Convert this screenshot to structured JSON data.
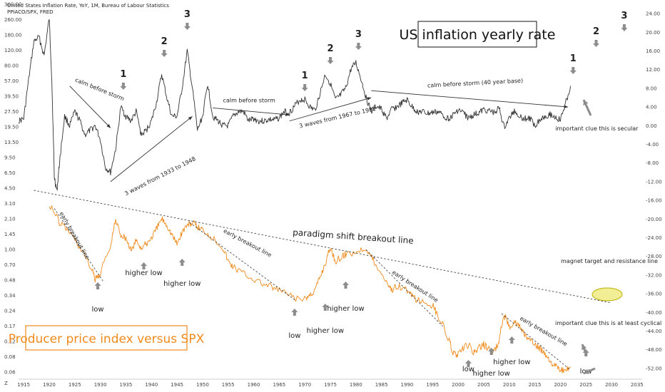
{
  "header": {
    "title": "United States Inflation Rate, YoY, 1M, Bureau of Labour Statistics",
    "subtitle": "PPIACO/SPX, FRED"
  },
  "chart_data": {
    "type": "line",
    "title": "US inflation yearly rate",
    "title2": "Producer price index versus SPX",
    "x_ticks": [
      "1915",
      "1920",
      "1925",
      "1930",
      "1935",
      "1940",
      "1945",
      "1950",
      "1955",
      "1960",
      "1965",
      "1970",
      "1975",
      "1980",
      "1985",
      "1990",
      "1995",
      "2000",
      "2005",
      "2010",
      "2015",
      "2020",
      "2025",
      "2030",
      "2035"
    ],
    "xlim": [
      1914,
      2036
    ],
    "left_ticks": [
      "360.00",
      "260.00",
      "180.00",
      "120.00",
      "80.00",
      "57.00",
      "39.50",
      "27.50",
      "19.50",
      "13.50",
      "9.50",
      "6.50",
      "4.50",
      "3.10",
      "2.10",
      "1.45",
      "1.00",
      "0.70",
      "0.48",
      "0.34",
      "0.24",
      "0.17",
      "0.12",
      "0.08",
      "0.06"
    ],
    "right_ticks": [
      "24.00",
      "20.00",
      "16.00",
      "12.00",
      "8.00",
      "4.00",
      "0.00",
      "-4.00",
      "-8.00",
      "-12.00",
      "-16.00",
      "-20.00",
      "-24.00",
      "-28.00",
      "-32.00",
      "-36.00",
      "-40.00",
      "-44.00",
      "-48.00",
      "-52.00"
    ],
    "right_ylim": [
      -54,
      26
    ],
    "left_log_ylim": [
      0.05,
      360
    ],
    "corner_label": "Z",
    "series": [
      {
        "axis": "right",
        "color": "#333333",
        "points": [
          [
            1914,
            1.0
          ],
          [
            1915,
            1.5
          ],
          [
            1916,
            10
          ],
          [
            1917,
            18
          ],
          [
            1918,
            19
          ],
          [
            1919,
            15
          ],
          [
            1920,
            23
          ],
          [
            1920.5,
            10
          ],
          [
            1921,
            -11
          ],
          [
            1921.5,
            -14
          ],
          [
            1922,
            -8
          ],
          [
            1923,
            2
          ],
          [
            1924,
            0
          ],
          [
            1925,
            3
          ],
          [
            1926,
            1
          ],
          [
            1927,
            -2
          ],
          [
            1928,
            -1
          ],
          [
            1929,
            0
          ],
          [
            1930,
            -3
          ],
          [
            1931,
            -9
          ],
          [
            1932,
            -10
          ],
          [
            1933,
            -5
          ],
          [
            1934,
            4
          ],
          [
            1935,
            2
          ],
          [
            1936,
            1
          ],
          [
            1937,
            3
          ],
          [
            1938,
            -2
          ],
          [
            1939,
            -1
          ],
          [
            1940,
            1
          ],
          [
            1941,
            5
          ],
          [
            1942,
            11
          ],
          [
            1943,
            6
          ],
          [
            1944,
            2
          ],
          [
            1945,
            2
          ],
          [
            1946,
            8
          ],
          [
            1947,
            16
          ],
          [
            1948,
            8
          ],
          [
            1949,
            -1
          ],
          [
            1950,
            2
          ],
          [
            1951,
            9
          ],
          [
            1952,
            2
          ],
          [
            1953,
            1
          ],
          [
            1954,
            0
          ],
          [
            1955,
            0
          ],
          [
            1956,
            2
          ],
          [
            1957,
            3
          ],
          [
            1958,
            3
          ],
          [
            1959,
            1
          ],
          [
            1960,
            1.5
          ],
          [
            1961,
            1
          ],
          [
            1962,
            1
          ],
          [
            1963,
            1.3
          ],
          [
            1964,
            1.2
          ],
          [
            1965,
            1.7
          ],
          [
            1966,
            3
          ],
          [
            1967,
            2.8
          ],
          [
            1968,
            4.2
          ],
          [
            1969,
            5.5
          ],
          [
            1970,
            5.6
          ],
          [
            1971,
            4
          ],
          [
            1972,
            3.3
          ],
          [
            1973,
            7
          ],
          [
            1974,
            11
          ],
          [
            1975,
            9
          ],
          [
            1976,
            5.5
          ],
          [
            1977,
            6.5
          ],
          [
            1978,
            8
          ],
          [
            1979,
            12
          ],
          [
            1980,
            13.5
          ],
          [
            1981,
            10
          ],
          [
            1982,
            6
          ],
          [
            1983,
            3
          ],
          [
            1984,
            4.2
          ],
          [
            1985,
            3.5
          ],
          [
            1986,
            1.5
          ],
          [
            1987,
            3.5
          ],
          [
            1988,
            4
          ],
          [
            1989,
            4.8
          ],
          [
            1990,
            5.5
          ],
          [
            1991,
            4
          ],
          [
            1992,
            3
          ],
          [
            1993,
            3
          ],
          [
            1994,
            2.6
          ],
          [
            1995,
            2.8
          ],
          [
            1996,
            3
          ],
          [
            1997,
            2.3
          ],
          [
            1998,
            1.5
          ],
          [
            1999,
            2.2
          ],
          [
            2000,
            3.4
          ],
          [
            2001,
            2.8
          ],
          [
            2002,
            1.6
          ],
          [
            2003,
            2.3
          ],
          [
            2004,
            2.7
          ],
          [
            2005,
            3.4
          ],
          [
            2006,
            3.2
          ],
          [
            2007,
            2.8
          ],
          [
            2008,
            3.8
          ],
          [
            2009,
            -0.4
          ],
          [
            2010,
            1.6
          ],
          [
            2011,
            3.2
          ],
          [
            2012,
            2.1
          ],
          [
            2013,
            1.5
          ],
          [
            2014,
            1.6
          ],
          [
            2015,
            0.1
          ],
          [
            2016,
            1.3
          ],
          [
            2017,
            2.1
          ],
          [
            2018,
            2.4
          ],
          [
            2019,
            1.8
          ],
          [
            2020,
            1.2
          ],
          [
            2021,
            4.7
          ],
          [
            2022,
            8.5
          ]
        ]
      },
      {
        "axis": "left",
        "color": "#f08a1c",
        "points": [
          [
            1920,
            3.1
          ],
          [
            1922,
            2.0
          ],
          [
            1924,
            1.6
          ],
          [
            1926,
            1.1
          ],
          [
            1928,
            0.7
          ],
          [
            1929,
            0.52
          ],
          [
            1930,
            0.6
          ],
          [
            1932,
            1.1
          ],
          [
            1933,
            2.1
          ],
          [
            1934,
            1.5
          ],
          [
            1935,
            1.4
          ],
          [
            1936,
            1.0
          ],
          [
            1937,
            1.3
          ],
          [
            1938,
            1.1
          ],
          [
            1939,
            1.2
          ],
          [
            1940,
            1.4
          ],
          [
            1941,
            1.7
          ],
          [
            1942,
            2.2
          ],
          [
            1943,
            1.9
          ],
          [
            1944,
            1.5
          ],
          [
            1945,
            1.2
          ],
          [
            1946,
            1.6
          ],
          [
            1947,
            1.9
          ],
          [
            1948,
            2.0
          ],
          [
            1949,
            1.8
          ],
          [
            1950,
            1.7
          ],
          [
            1952,
            1.4
          ],
          [
            1954,
            1.1
          ],
          [
            1955,
            0.8
          ],
          [
            1956,
            0.7
          ],
          [
            1958,
            0.6
          ],
          [
            1960,
            0.52
          ],
          [
            1962,
            0.46
          ],
          [
            1964,
            0.42
          ],
          [
            1966,
            0.38
          ],
          [
            1968,
            0.33
          ],
          [
            1970,
            0.32
          ],
          [
            1971,
            0.36
          ],
          [
            1972,
            0.4
          ],
          [
            1973,
            0.55
          ],
          [
            1974,
            0.75
          ],
          [
            1975,
            1.1
          ],
          [
            1976,
            0.8
          ],
          [
            1977,
            0.85
          ],
          [
            1978,
            0.95
          ],
          [
            1980,
            1.0
          ],
          [
            1982,
            1.1
          ],
          [
            1983,
            0.9
          ],
          [
            1984,
            0.7
          ],
          [
            1986,
            0.5
          ],
          [
            1987,
            0.4
          ],
          [
            1988,
            0.45
          ],
          [
            1990,
            0.4
          ],
          [
            1991,
            0.34
          ],
          [
            1993,
            0.3
          ],
          [
            1995,
            0.28
          ],
          [
            1996,
            0.22
          ],
          [
            1998,
            0.13
          ],
          [
            1999,
            0.09
          ],
          [
            2000,
            0.085
          ],
          [
            2001,
            0.1
          ],
          [
            2002,
            0.11
          ],
          [
            2003,
            0.09
          ],
          [
            2004,
            0.1
          ],
          [
            2005,
            0.11
          ],
          [
            2006,
            0.1
          ],
          [
            2007,
            0.09
          ],
          [
            2008,
            0.12
          ],
          [
            2009,
            0.22
          ],
          [
            2010,
            0.17
          ],
          [
            2011,
            0.19
          ],
          [
            2012,
            0.17
          ],
          [
            2013,
            0.14
          ],
          [
            2014,
            0.12
          ],
          [
            2015,
            0.11
          ],
          [
            2016,
            0.1
          ],
          [
            2017,
            0.09
          ],
          [
            2018,
            0.075
          ],
          [
            2019,
            0.065
          ],
          [
            2020,
            0.06
          ],
          [
            2021,
            0.058
          ],
          [
            2022,
            0.065
          ]
        ]
      }
    ],
    "annotations": {
      "waves": [
        {
          "label": "1",
          "x": 1934.5,
          "row": "top"
        },
        {
          "label": "2",
          "x": 1942.5,
          "row": "top"
        },
        {
          "label": "3",
          "x": 1947,
          "row": "top"
        },
        {
          "label": "1",
          "x": 1970,
          "row": "mid"
        },
        {
          "label": "2",
          "x": 1975,
          "row": "mid"
        },
        {
          "label": "3",
          "x": 1980.5,
          "row": "mid"
        },
        {
          "label": "1",
          "x": 2022.5,
          "row": "low"
        },
        {
          "label": "2",
          "x": 2027,
          "row": "far"
        },
        {
          "label": "3",
          "x": 2032.5,
          "row": "far"
        }
      ],
      "notes": {
        "calm1": "calm before storm",
        "calm2": "calm before storm",
        "calm3": "calm before storm (40 year base)",
        "waves1": "3 waves from 1933 to 1948",
        "waves2": "3 waves from 1967 to 1982",
        "clue1": "important clue this is secular",
        "paradigm": "paradigm shift breakout line",
        "magnet": "magnet target and resistance line",
        "early": "early breakout line",
        "clue2": "important clue this is at least cyclical"
      },
      "ppi_labels": {
        "low": "low",
        "higher_low": "higher low"
      }
    }
  }
}
